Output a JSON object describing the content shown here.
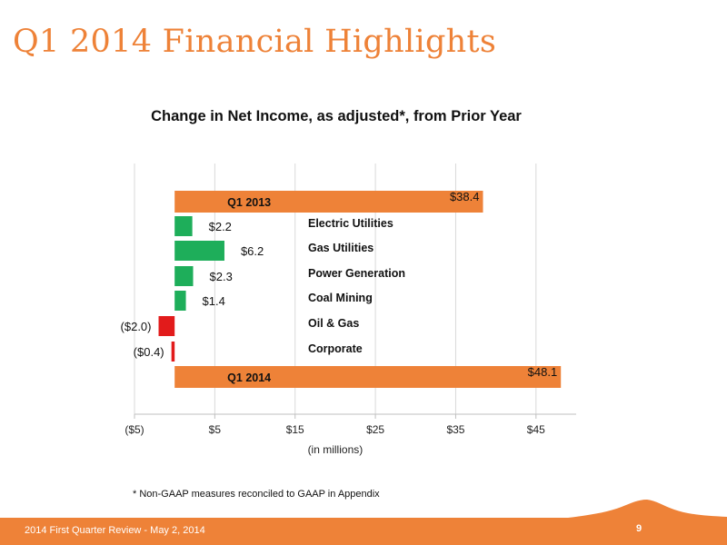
{
  "slide": {
    "title": "Q1 2014 Financial Highlights",
    "footnote": "*  Non-GAAP measures reconciled to GAAP in Appendix",
    "footer_text": "2014 First Quarter Review - May 2, 2014",
    "page_number": "9"
  },
  "colors": {
    "accent": "#EE8238",
    "positive": "#1EAE5A",
    "negative": "#E21B1B",
    "grid": "#D9D9D9"
  },
  "chart_data": {
    "type": "bar",
    "orientation": "horizontal",
    "variant": "waterfall",
    "title": "Change in Net Income, as adjusted*, from Prior Year",
    "xlabel": "(in millions)",
    "ylabel": "",
    "xlim": [
      -5,
      50
    ],
    "xticks": [
      -5,
      5,
      15,
      25,
      35,
      45
    ],
    "xtick_labels": [
      "($5)",
      "$5",
      "$15",
      "$25",
      "$35",
      "$45"
    ],
    "grid": "vertical",
    "categories": [
      "Q1 2013",
      "Electric Utilities",
      "Gas Utilities",
      "Power Generation",
      "Coal Mining",
      "Oil & Gas",
      "Corporate",
      "Q1 2014"
    ],
    "values": [
      38.4,
      2.2,
      6.2,
      2.3,
      1.4,
      -2.0,
      -0.4,
      48.1
    ],
    "value_labels": [
      "$38.4",
      "$2.2",
      "$6.2",
      "$2.3",
      "$1.4",
      "($2.0)",
      "($0.4)",
      "$48.1"
    ],
    "bar_kinds": [
      "total",
      "change",
      "change",
      "change",
      "change",
      "change",
      "change",
      "total"
    ]
  }
}
